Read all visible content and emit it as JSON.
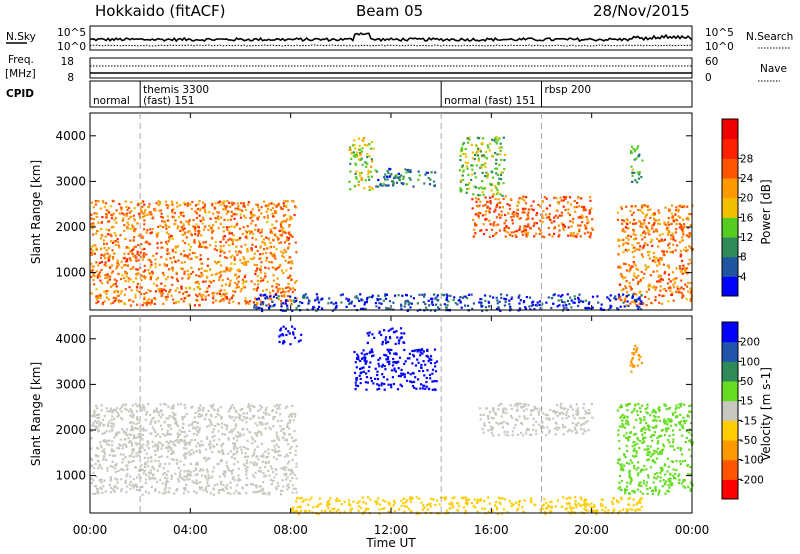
{
  "header": {
    "station": "Hokkaido (fitACF)",
    "beam": "Beam 05",
    "date": "28/Nov/2015"
  },
  "top_panels": {
    "nsky_label": "N.Sky",
    "nsearch_label": "N.Search",
    "noise_ticks": [
      "10^5",
      "10^0"
    ],
    "noise_ticks_right": [
      "10^5",
      "10^0"
    ],
    "freq_label": [
      "Freq.",
      "[MHz]"
    ],
    "freq_ticks": [
      "18",
      "8"
    ],
    "nave_label": "Nave",
    "nave_ticks": [
      "60",
      "0"
    ],
    "cpid_label": "CPID",
    "cpid_entries": [
      {
        "line1": "",
        "line2": "normal",
        "start_hr": 0
      },
      {
        "line1": "themis 3300",
        "line2": "(fast) 151",
        "start_hr": 2
      },
      {
        "line1": "",
        "line2": "normal (fast) 151",
        "start_hr": 14
      },
      {
        "line1": "rbsp 200",
        "line2": "",
        "start_hr": 18
      }
    ]
  },
  "axes": {
    "xlabel": "Time UT",
    "x_ticks": [
      "00:00",
      "04:00",
      "08:00",
      "12:00",
      "16:00",
      "20:00",
      "00:00"
    ],
    "ylabel": "Slant Range [km]",
    "y_ticks": [
      "1000",
      "2000",
      "3000",
      "4000"
    ]
  },
  "colorbars": {
    "power": {
      "label": "Power [dB]",
      "ticks": [
        "4",
        "8",
        "12",
        "16",
        "20",
        "24",
        "28"
      ],
      "colors": [
        "#0000ff",
        "#2255a0",
        "#2e8b57",
        "#55cc22",
        "#f0c000",
        "#ff9900",
        "#ff5500",
        "#ff2200",
        "#ee0000"
      ]
    },
    "velocity": {
      "label": "Velocity [m s-1]",
      "ticks": [
        "200",
        "100",
        "50",
        "15",
        "-15",
        "-50",
        "-100",
        "-200"
      ],
      "colors": [
        "#0000ff",
        "#2255aa",
        "#2e8b57",
        "#66dd22",
        "#c8c8c0",
        "#ffcc00",
        "#ff9900",
        "#ff5500",
        "#ff0000"
      ]
    }
  },
  "chart_data": [
    {
      "type": "heatmap",
      "name": "Power",
      "x_range_hours": [
        0,
        24
      ],
      "y_range_km": [
        180,
        4500
      ],
      "scale_units": "dB",
      "regions": [
        {
          "t0": 0.0,
          "t1": 8.2,
          "r0": 300,
          "r1": 2600,
          "level": 24
        },
        {
          "t0": 10.3,
          "t1": 11.3,
          "r0": 2800,
          "r1": 4000,
          "level": 16
        },
        {
          "t0": 11.3,
          "t1": 13.8,
          "r0": 2900,
          "r1": 3300,
          "level": 8
        },
        {
          "t0": 15.2,
          "t1": 20.0,
          "r0": 1800,
          "r1": 2700,
          "level": 26
        },
        {
          "t0": 14.7,
          "t1": 16.5,
          "r0": 2700,
          "r1": 4000,
          "level": 14
        },
        {
          "t0": 21.0,
          "t1": 24.0,
          "r0": 300,
          "r1": 2500,
          "level": 24
        },
        {
          "t0": 21.5,
          "t1": 22.0,
          "r0": 3000,
          "r1": 3800,
          "level": 12
        },
        {
          "t0": 6.5,
          "t1": 22.0,
          "r0": 180,
          "r1": 550,
          "level": 4
        }
      ]
    },
    {
      "type": "heatmap",
      "name": "Velocity",
      "x_range_hours": [
        0,
        24
      ],
      "y_range_km": [
        180,
        4500
      ],
      "scale_units": "m s-1",
      "regions": [
        {
          "t0": 0.0,
          "t1": 8.2,
          "r0": 600,
          "r1": 2600,
          "level": 0
        },
        {
          "t0": 10.5,
          "t1": 13.8,
          "r0": 2900,
          "r1": 3800,
          "level": 220
        },
        {
          "t0": 7.5,
          "t1": 8.5,
          "r0": 3900,
          "r1": 4300,
          "level": 220
        },
        {
          "t0": 11.0,
          "t1": 12.5,
          "r0": 3900,
          "r1": 4300,
          "level": 220
        },
        {
          "t0": 15.5,
          "t1": 20.0,
          "r0": 1900,
          "r1": 2600,
          "level": 0
        },
        {
          "t0": 21.0,
          "t1": 24.0,
          "r0": 600,
          "r1": 2600,
          "level": 30
        },
        {
          "t0": 21.5,
          "t1": 22.0,
          "r0": 3300,
          "r1": 3900,
          "level": -80
        },
        {
          "t0": 8.0,
          "t1": 22.0,
          "r0": 180,
          "r1": 550,
          "level": -30
        }
      ]
    }
  ]
}
